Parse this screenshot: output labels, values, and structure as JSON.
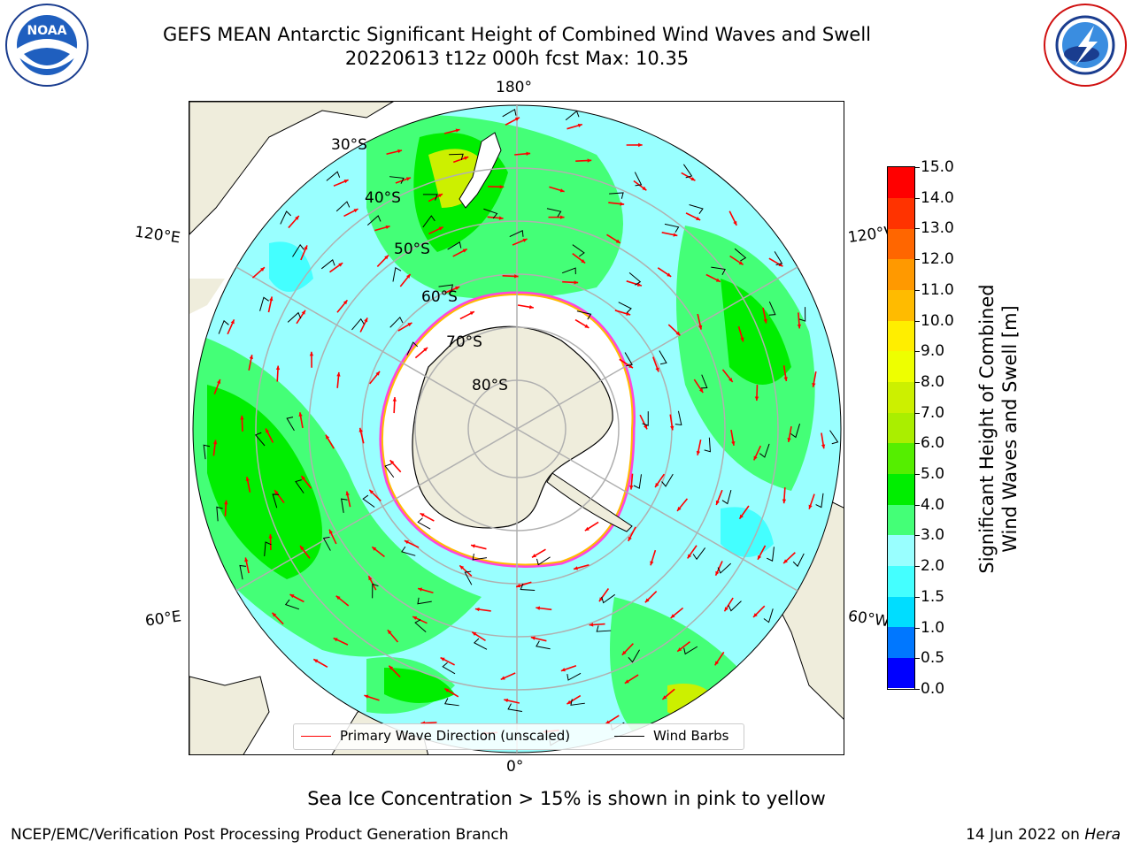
{
  "header": {
    "title_line1": "GEFS MEAN Antarctic Significant Height of Combined Wind Waves and Swell",
    "title_line2": "20220613 t12z 000h fcst   Max: 10.35"
  },
  "map": {
    "meridian_labels": {
      "top": "180°",
      "bottom": "0°",
      "left_upper": "120°E",
      "right_upper": "120°W",
      "left_lower": "60°E",
      "right_lower": "60°W"
    },
    "latitude_labels": [
      "30°S",
      "40°S",
      "50°S",
      "60°S",
      "70°S",
      "80°S"
    ],
    "colors": {
      "land": "#efeddc",
      "graticule": "#b0b0b0",
      "wave_direction": "#ff0000",
      "wind_barb": "#000000",
      "sea_ice": "#ff44dd"
    }
  },
  "legend": {
    "wave_direction": "Primary Wave Direction (unscaled)",
    "wind_barbs": "Wind Barbs"
  },
  "colorbar": {
    "label_line1": "Significant Height of Combined",
    "label_line2": "Wind Waves and Swell [m]",
    "ticks": [
      "0.0",
      "0.5",
      "1.0",
      "1.5",
      "2.0",
      "3.0",
      "4.0",
      "5.0",
      "6.0",
      "7.0",
      "8.0",
      "9.0",
      "10.0",
      "11.0",
      "12.0",
      "13.0",
      "14.0",
      "15.0"
    ],
    "colors": [
      "#0000ff",
      "#0077ff",
      "#00ddff",
      "#44ffff",
      "#99ffff",
      "#44ff77",
      "#00ee00",
      "#55ee00",
      "#aaee00",
      "#ccf000",
      "#eeff00",
      "#ffee00",
      "#ffbb00",
      "#ff9900",
      "#ff6600",
      "#ff3300",
      "#ff0000"
    ]
  },
  "subtitle": "Sea Ice Concentration > 15% is shown in pink to yellow",
  "footer": {
    "left": "NCEP/EMC/Verification Post Processing Product Generation Branch",
    "right_date": "14 Jun 2022 on ",
    "right_host": "Hera"
  }
}
